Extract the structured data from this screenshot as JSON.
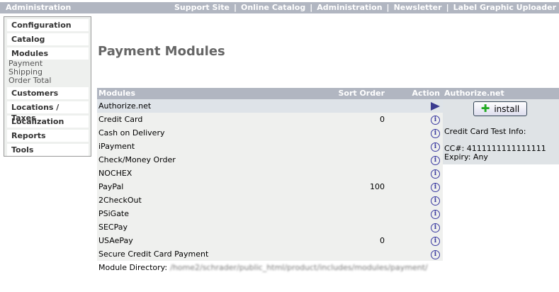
{
  "topbar": {
    "title": "Administration",
    "links": [
      "Support Site",
      "Online Catalog",
      "Administration",
      "Newsletter",
      "Label Graphic Uploader"
    ],
    "separator": "|"
  },
  "sidebar": {
    "sections": [
      {
        "label": "Configuration"
      },
      {
        "label": "Catalog"
      },
      {
        "label": "Modules",
        "sub": [
          "Payment",
          "Shipping",
          "Order Total"
        ]
      },
      {
        "label": "Customers"
      },
      {
        "label": "Locations / Taxes"
      },
      {
        "label": "Localization"
      },
      {
        "label": "Reports"
      },
      {
        "label": "Tools"
      }
    ]
  },
  "page_title": "Payment Modules",
  "table": {
    "headers": {
      "modules": "Modules",
      "sort": "Sort Order",
      "action": "Action"
    },
    "rows": [
      {
        "name": "Authorize.net",
        "sort": "",
        "action": "arrow",
        "selected": true
      },
      {
        "name": "Credit Card",
        "sort": "0",
        "action": "info"
      },
      {
        "name": "Cash on Delivery",
        "sort": "",
        "action": "info"
      },
      {
        "name": "iPayment",
        "sort": "",
        "action": "info"
      },
      {
        "name": "Check/Money Order",
        "sort": "",
        "action": "info"
      },
      {
        "name": "NOCHEX",
        "sort": "",
        "action": "info"
      },
      {
        "name": "PayPal",
        "sort": "100",
        "action": "info"
      },
      {
        "name": "2CheckOut",
        "sort": "",
        "action": "info"
      },
      {
        "name": "PSiGate",
        "sort": "",
        "action": "info"
      },
      {
        "name": "SECPay",
        "sort": "",
        "action": "info"
      },
      {
        "name": "USAePay",
        "sort": "0",
        "action": "info"
      },
      {
        "name": "Secure Credit Card Payment",
        "sort": "",
        "action": "info"
      }
    ]
  },
  "module_directory": {
    "label": "Module Directory:",
    "path": "/home2/schrader/public_html/product/includes/modules/payment/"
  },
  "panel": {
    "title": "Authorize.net",
    "install_label": "install",
    "info_title": "Credit Card Test Info:",
    "cc": "CC#: 4111111111111111",
    "expiry": "Expiry: Any"
  }
}
